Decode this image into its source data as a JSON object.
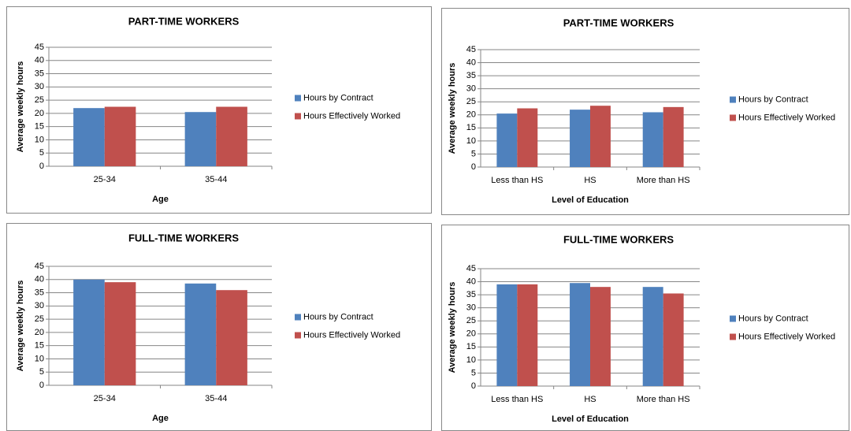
{
  "chart_data": [
    {
      "type": "bar",
      "title": "PART-TIME WORKERS",
      "x_label": "Age",
      "y_label": "Average weekly hours",
      "categories": [
        "25-34",
        "35-44"
      ],
      "series": [
        {
          "name": "Hours by Contract",
          "color": "#4f81bd",
          "values": [
            22,
            20.5
          ]
        },
        {
          "name": "Hours Effectively Worked",
          "color": "#c0504d",
          "values": [
            22.5,
            22.5
          ]
        }
      ],
      "ylim": [
        0,
        45
      ],
      "yticks": [
        0,
        5,
        10,
        15,
        20,
        25,
        30,
        35,
        40,
        45
      ],
      "grid": true,
      "legend": "right"
    },
    {
      "type": "bar",
      "title": "PART-TIME WORKERS",
      "x_label": "Level of Education",
      "y_label": "Average weekly hours",
      "categories": [
        "Less than HS",
        "HS",
        "More than HS"
      ],
      "series": [
        {
          "name": "Hours by Contract",
          "color": "#4f81bd",
          "values": [
            20.5,
            22,
            21
          ]
        },
        {
          "name": "Hours Effectively Worked",
          "color": "#c0504d",
          "values": [
            22.5,
            23.5,
            23
          ]
        }
      ],
      "ylim": [
        0,
        45
      ],
      "yticks": [
        0,
        5,
        10,
        15,
        20,
        25,
        30,
        35,
        40,
        45
      ],
      "grid": true,
      "legend": "right"
    },
    {
      "type": "bar",
      "title": "FULL-TIME WORKERS",
      "x_label": "Age",
      "y_label": "Average weekly hours",
      "categories": [
        "25-34",
        "35-44"
      ],
      "series": [
        {
          "name": "Hours by Contract",
          "color": "#4f81bd",
          "values": [
            40,
            38.5
          ]
        },
        {
          "name": "Hours Effectively Worked",
          "color": "#c0504d",
          "values": [
            39,
            36
          ]
        }
      ],
      "ylim": [
        0,
        45
      ],
      "yticks": [
        0,
        5,
        10,
        15,
        20,
        25,
        30,
        35,
        40,
        45
      ],
      "grid": true,
      "legend": "right"
    },
    {
      "type": "bar",
      "title": "FULL-TIME WORKERS",
      "x_label": "Level of Education",
      "y_label": "Average weekly hours",
      "categories": [
        "Less than HS",
        "HS",
        "More than HS"
      ],
      "series": [
        {
          "name": "Hours by Contract",
          "color": "#4f81bd",
          "values": [
            39,
            39.5,
            38
          ]
        },
        {
          "name": "Hours Effectively Worked",
          "color": "#c0504d",
          "values": [
            39,
            38,
            35.5
          ]
        }
      ],
      "ylim": [
        0,
        45
      ],
      "yticks": [
        0,
        5,
        10,
        15,
        20,
        25,
        30,
        35,
        40,
        45
      ],
      "grid": true,
      "legend": "right"
    }
  ]
}
